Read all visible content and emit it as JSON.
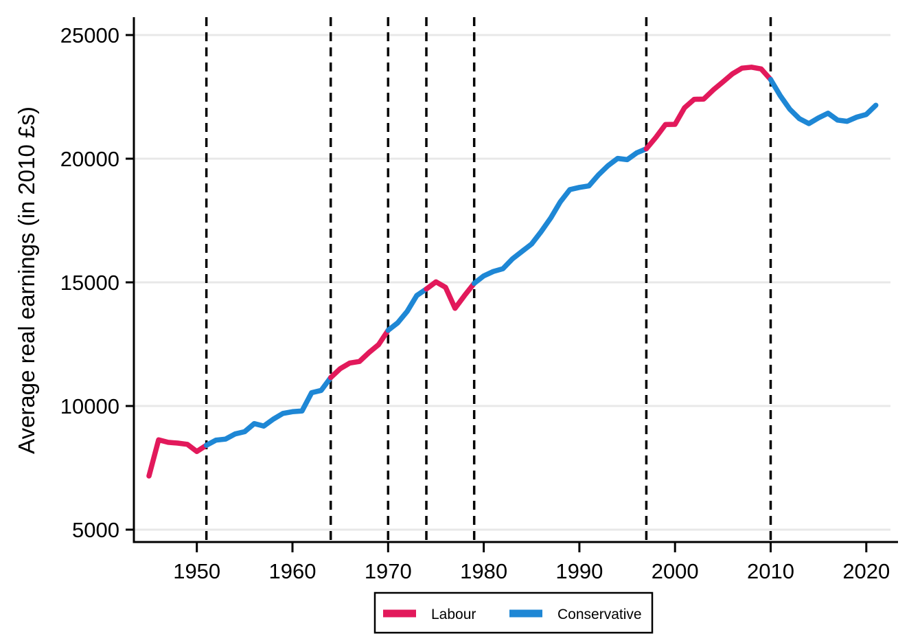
{
  "chart_data": {
    "type": "line",
    "title": "",
    "xlabel": "",
    "ylabel": "Average real earnings (in 2010 £s)",
    "grid": true,
    "legend_position": "bottom-center",
    "xlim": [
      1943.4,
      2022.5
    ],
    "ylim": [
      4500,
      25720
    ],
    "x_ticks": [
      1950,
      1960,
      1970,
      1980,
      1990,
      2000,
      2010,
      2020
    ],
    "y_ticks": [
      5000,
      10000,
      15000,
      20000,
      25000
    ],
    "election_guide_years": [
      1951,
      1964,
      1970,
      1974,
      1979,
      1997,
      2010
    ],
    "years": [
      1945,
      1946,
      1947,
      1948,
      1949,
      1950,
      1951,
      1952,
      1953,
      1954,
      1955,
      1956,
      1957,
      1958,
      1959,
      1960,
      1961,
      1962,
      1963,
      1964,
      1965,
      1966,
      1967,
      1968,
      1969,
      1970,
      1971,
      1972,
      1973,
      1974,
      1975,
      1976,
      1977,
      1978,
      1979,
      1980,
      1981,
      1982,
      1983,
      1984,
      1985,
      1986,
      1987,
      1988,
      1989,
      1990,
      1991,
      1992,
      1993,
      1994,
      1995,
      1996,
      1997,
      1998,
      1999,
      2000,
      2001,
      2002,
      2003,
      2004,
      2005,
      2006,
      2007,
      2008,
      2009,
      2010,
      2011,
      2012,
      2013,
      2014,
      2015,
      2016,
      2017,
      2018,
      2019,
      2020,
      2021
    ],
    "values": [
      7170,
      8630,
      8530,
      8500,
      8450,
      8160,
      8410,
      8620,
      8660,
      8870,
      8960,
      9290,
      9190,
      9470,
      9700,
      9770,
      9800,
      10540,
      10630,
      11150,
      11510,
      11740,
      11800,
      12160,
      12480,
      13060,
      13360,
      13830,
      14470,
      14730,
      15020,
      14800,
      13950,
      14470,
      14960,
      15260,
      15440,
      15550,
      15950,
      16250,
      16550,
      17050,
      17600,
      18250,
      18750,
      18840,
      18900,
      19350,
      19720,
      20010,
      19960,
      20240,
      20400,
      20860,
      21380,
      21390,
      22060,
      22400,
      22410,
      22780,
      23100,
      23430,
      23660,
      23700,
      23630,
      23200,
      22550,
      22000,
      21620,
      21420,
      21650,
      21840,
      21560,
      21510,
      21680,
      21790,
      22160
    ],
    "segments": [
      {
        "party": "Labour",
        "from": 1945,
        "to": 1951
      },
      {
        "party": "Conservative",
        "from": 1951,
        "to": 1964
      },
      {
        "party": "Labour",
        "from": 1964,
        "to": 1970
      },
      {
        "party": "Conservative",
        "from": 1970,
        "to": 1974
      },
      {
        "party": "Labour",
        "from": 1974,
        "to": 1979
      },
      {
        "party": "Conservative",
        "from": 1979,
        "to": 1997
      },
      {
        "party": "Labour",
        "from": 1997,
        "to": 2010
      },
      {
        "party": "Conservative",
        "from": 2010,
        "to": 2021
      }
    ],
    "colors": {
      "Labour": "#e2195b",
      "Conservative": "#1e87d5",
      "grid": "#e8e8e8",
      "axis": "#000000",
      "guide": "#000000"
    },
    "legend": [
      {
        "label": "Labour",
        "color": "#e2195b"
      },
      {
        "label": "Conservative",
        "color": "#1e87d5"
      }
    ]
  }
}
